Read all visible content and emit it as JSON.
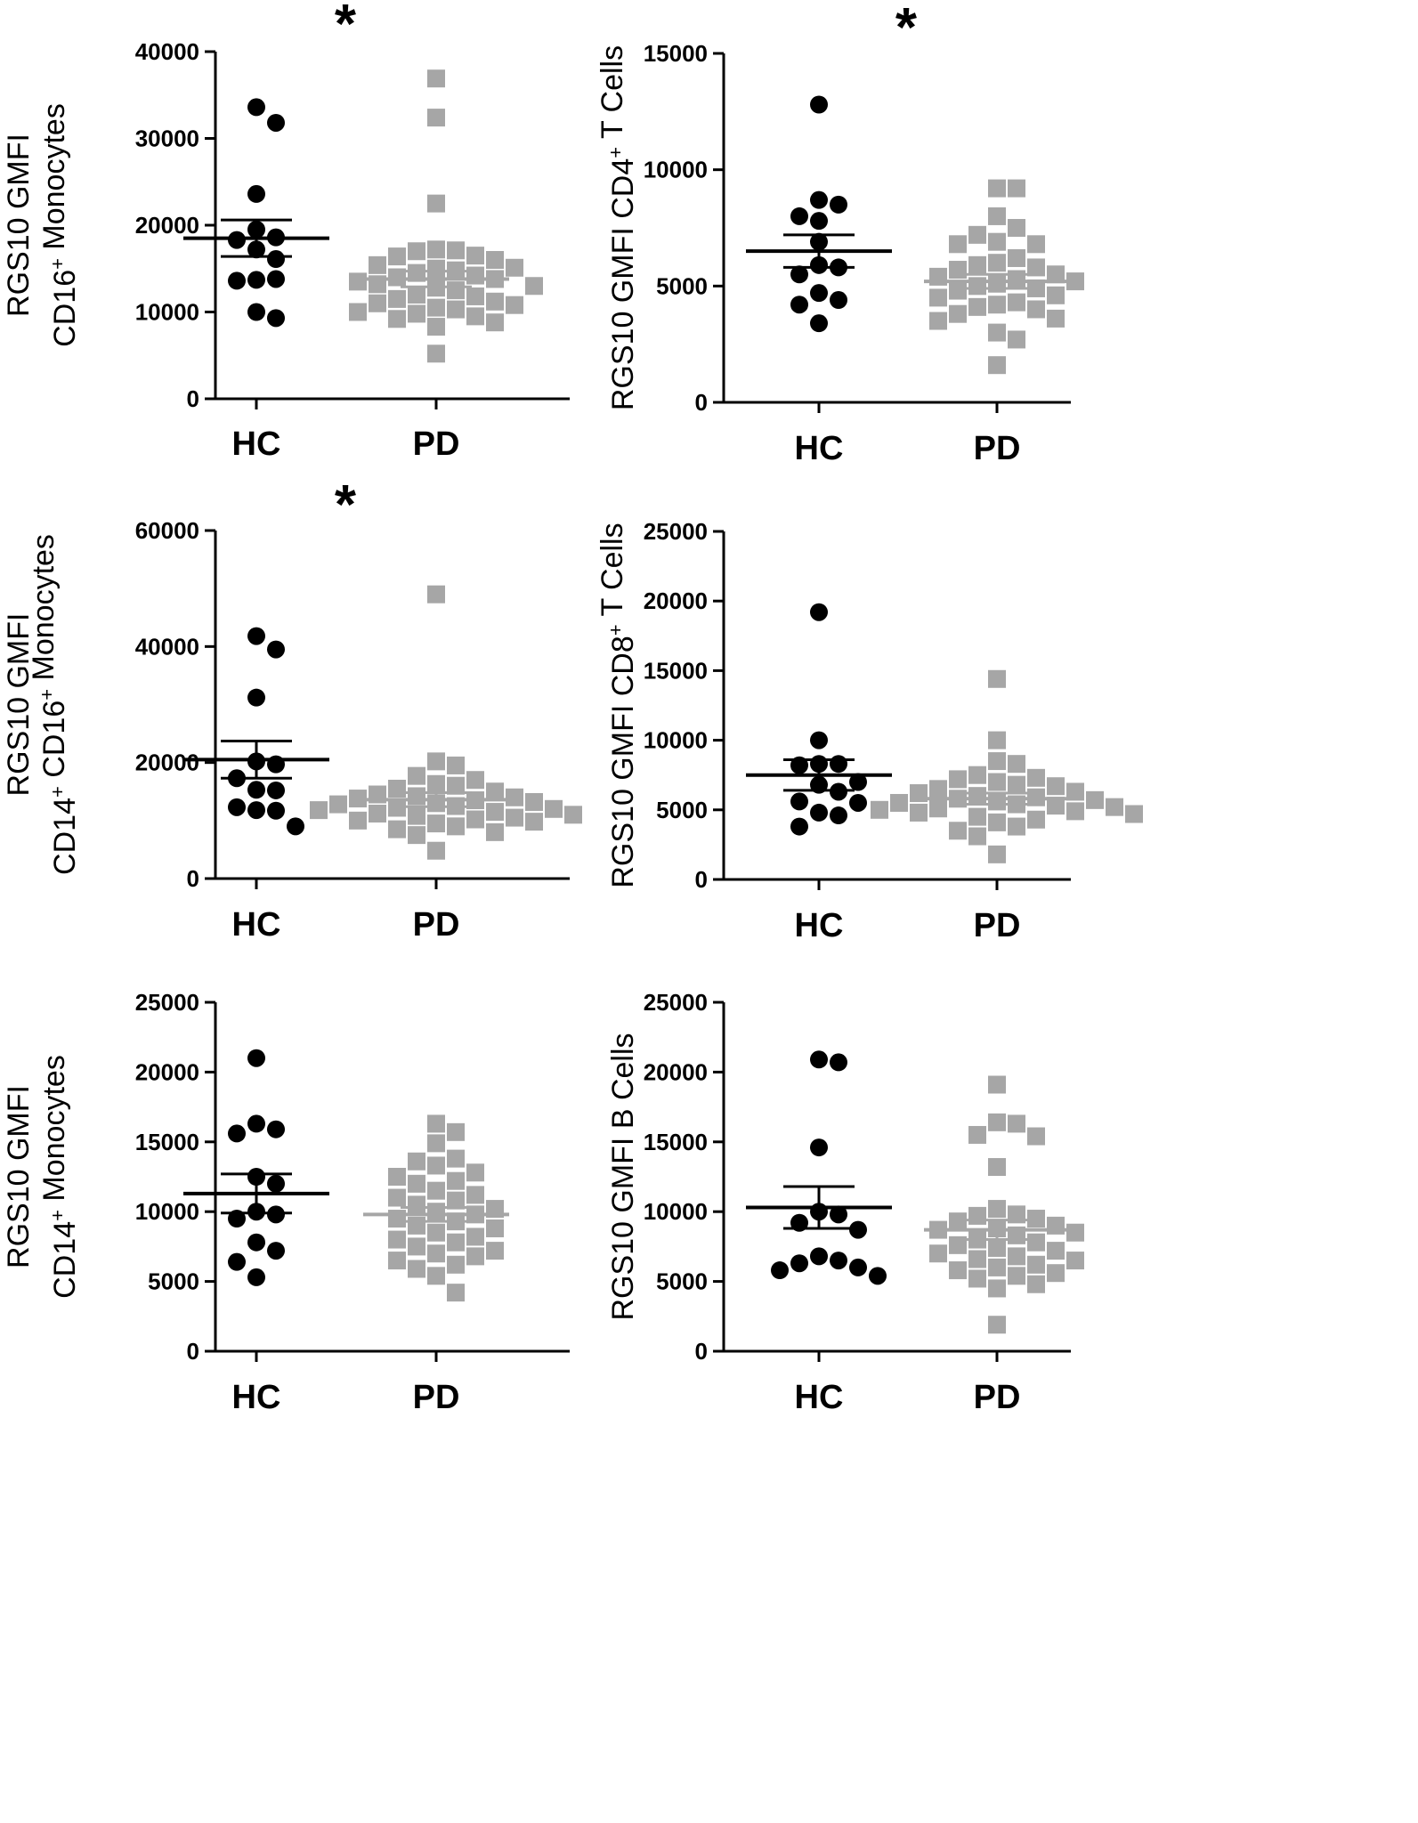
{
  "colors": {
    "hc": "#000000",
    "pd": "#a6a6a6",
    "axis": "#000000"
  },
  "chart_data": [
    {
      "type": "scatter",
      "panel": "top-left",
      "categories": [
        "HC",
        "PD"
      ],
      "ylabel_lines": [
        [
          {
            "t": "RGS10 GMFI"
          }
        ],
        [
          {
            "t": "CD16"
          },
          {
            "t": "+",
            "sup": true
          },
          {
            "t": " Monocytes"
          }
        ]
      ],
      "ylim": [
        0,
        40000
      ],
      "yticks": [
        0,
        10000,
        20000,
        30000,
        40000
      ],
      "ytick_labels": [
        "0",
        "10000",
        "20000",
        "30000",
        "40000"
      ],
      "significance": "*",
      "series": [
        {
          "name": "HC",
          "marker": "circle",
          "mean": 18500,
          "sem": 2100,
          "values": [
            33600,
            31800,
            23600,
            19500,
            18600,
            18300,
            17200,
            16100,
            13700,
            13800,
            13600,
            10000,
            9300
          ]
        },
        {
          "name": "PD",
          "marker": "square",
          "mean": 13800,
          "sem": 900,
          "values": [
            36900,
            32400,
            22500,
            17200,
            17100,
            17000,
            16500,
            16400,
            16000,
            15400,
            15100,
            15000,
            14800,
            14500,
            14200,
            14000,
            13800,
            13500,
            13200,
            13000,
            12800,
            12500,
            12000,
            11800,
            11500,
            11200,
            11000,
            10800,
            10500,
            10300,
            10000,
            9800,
            9500,
            9200,
            8800,
            8300,
            5200
          ]
        }
      ]
    },
    {
      "type": "scatter",
      "panel": "top-right",
      "categories": [
        "HC",
        "PD"
      ],
      "ylabel_lines": [
        [
          {
            "t": "RGS10 GMFI CD4"
          },
          {
            "t": "+",
            "sup": true
          },
          {
            "t": " T Cells"
          }
        ]
      ],
      "ylim": [
        0,
        15000
      ],
      "yticks": [
        0,
        5000,
        10000,
        15000
      ],
      "ytick_labels": [
        "0",
        "5000",
        "10000",
        "15000"
      ],
      "significance": "*",
      "series": [
        {
          "name": "HC",
          "marker": "circle",
          "mean": 6500,
          "sem": 700,
          "values": [
            12800,
            8700,
            8500,
            8000,
            7800,
            6900,
            5900,
            5800,
            5500,
            4700,
            4400,
            4200,
            3400
          ]
        },
        {
          "name": "PD",
          "marker": "square",
          "mean": 5200,
          "sem": 300,
          "values": [
            9200,
            9200,
            8000,
            7500,
            7200,
            6900,
            6800,
            6800,
            6200,
            6000,
            5900,
            5800,
            5700,
            5500,
            5400,
            5300,
            5200,
            5100,
            5000,
            4900,
            4800,
            4600,
            4500,
            4300,
            4200,
            4100,
            4000,
            3800,
            3600,
            3500,
            3000,
            2700,
            1600
          ]
        }
      ]
    },
    {
      "type": "scatter",
      "panel": "middle-left",
      "categories": [
        "HC",
        "PD"
      ],
      "ylabel_lines": [
        [
          {
            "t": "RGS10 GMFI"
          }
        ],
        [
          {
            "t": "CD14"
          },
          {
            "t": "+",
            "sup": true
          },
          {
            "t": " CD16"
          },
          {
            "t": "+",
            "sup": true
          },
          {
            "t": " Monocytes"
          }
        ]
      ],
      "ylim": [
        0,
        60000
      ],
      "yticks": [
        0,
        20000,
        40000,
        60000
      ],
      "ytick_labels": [
        "0",
        "20000",
        "40000",
        "60000"
      ],
      "significance": "*",
      "series": [
        {
          "name": "HC",
          "marker": "circle",
          "mean": 20500,
          "sem": 3200,
          "values": [
            41800,
            39500,
            31200,
            20200,
            19700,
            17300,
            15300,
            15200,
            12300,
            11800,
            11700,
            9000
          ]
        },
        {
          "name": "PD",
          "marker": "square",
          "mean": 13600,
          "sem": 1200,
          "values": [
            49000,
            20200,
            19500,
            17700,
            17000,
            16300,
            16000,
            15500,
            15000,
            14500,
            14200,
            14000,
            13800,
            13500,
            13200,
            13000,
            12800,
            12500,
            12200,
            12000,
            11800,
            11500,
            11200,
            11000,
            10800,
            10500,
            10200,
            10000,
            9800,
            9500,
            9000,
            8500,
            8000,
            7500,
            4800
          ]
        }
      ]
    },
    {
      "type": "scatter",
      "panel": "middle-right",
      "categories": [
        "HC",
        "PD"
      ],
      "ylabel_lines": [
        [
          {
            "t": "RGS10 GMFI CD8"
          },
          {
            "t": "+",
            "sup": true
          },
          {
            "t": " T Cells"
          }
        ]
      ],
      "ylim": [
        0,
        25000
      ],
      "yticks": [
        0,
        5000,
        10000,
        15000,
        20000,
        25000
      ],
      "ytick_labels": [
        "0",
        "5000",
        "10000",
        "15000",
        "20000",
        "25000"
      ],
      "significance": "",
      "series": [
        {
          "name": "HC",
          "marker": "circle",
          "mean": 7500,
          "sem": 1100,
          "values": [
            19200,
            10000,
            8300,
            8300,
            8200,
            7000,
            6800,
            6300,
            5600,
            5500,
            4800,
            4600,
            3800
          ]
        },
        {
          "name": "PD",
          "marker": "square",
          "mean": 5800,
          "sem": 400,
          "values": [
            14400,
            10000,
            8500,
            8300,
            7500,
            7300,
            7200,
            7000,
            6800,
            6700,
            6500,
            6300,
            6200,
            6000,
            5900,
            5800,
            5700,
            5600,
            5500,
            5400,
            5300,
            5200,
            5100,
            5000,
            4900,
            4800,
            4700,
            4500,
            4300,
            4100,
            3800,
            3500,
            3100,
            1800
          ]
        }
      ]
    },
    {
      "type": "scatter",
      "panel": "bottom-left",
      "categories": [
        "HC",
        "PD"
      ],
      "ylabel_lines": [
        [
          {
            "t": "RGS10 GMFI"
          }
        ],
        [
          {
            "t": "CD14"
          },
          {
            "t": "+",
            "sup": true
          },
          {
            "t": " Monocytes"
          }
        ]
      ],
      "ylim": [
        0,
        25000
      ],
      "yticks": [
        0,
        5000,
        10000,
        15000,
        20000,
        25000
      ],
      "ytick_labels": [
        "0",
        "5000",
        "10000",
        "15000",
        "20000",
        "25000"
      ],
      "significance": "",
      "series": [
        {
          "name": "HC",
          "marker": "circle",
          "mean": 11300,
          "sem": 1400,
          "values": [
            21000,
            16300,
            15900,
            15600,
            12500,
            12000,
            10000,
            9800,
            9500,
            7800,
            7200,
            6400,
            5300
          ]
        },
        {
          "name": "PD",
          "marker": "square",
          "mean": 9800,
          "sem": 500,
          "values": [
            16300,
            15700,
            14900,
            13800,
            13600,
            13300,
            12800,
            12500,
            12200,
            12000,
            11500,
            11200,
            11000,
            10800,
            10500,
            10200,
            10000,
            9800,
            9500,
            9300,
            9000,
            8800,
            8500,
            8200,
            8000,
            7800,
            7500,
            7200,
            7000,
            6800,
            6500,
            6200,
            5900,
            5400,
            4200
          ]
        }
      ]
    },
    {
      "type": "scatter",
      "panel": "bottom-right",
      "categories": [
        "HC",
        "PD"
      ],
      "ylabel_lines": [
        [
          {
            "t": "RGS10 GMFI B Cells"
          }
        ]
      ],
      "ylim": [
        0,
        25000
      ],
      "yticks": [
        0,
        5000,
        10000,
        15000,
        20000,
        25000
      ],
      "ytick_labels": [
        "0",
        "5000",
        "10000",
        "15000",
        "20000",
        "25000"
      ],
      "significance": "",
      "series": [
        {
          "name": "HC",
          "marker": "circle",
          "mean": 10300,
          "sem": 1500,
          "values": [
            20900,
            20700,
            14600,
            10000,
            9800,
            9200,
            8700,
            6800,
            6500,
            6300,
            6000,
            5800,
            5400
          ]
        },
        {
          "name": "PD",
          "marker": "square",
          "mean": 8700,
          "sem": 700,
          "values": [
            19100,
            16400,
            16300,
            15500,
            15400,
            13200,
            10200,
            9800,
            9700,
            9500,
            9300,
            9000,
            8800,
            8700,
            8500,
            8300,
            8000,
            7800,
            7600,
            7400,
            7200,
            7000,
            6800,
            6600,
            6500,
            6200,
            6000,
            5800,
            5600,
            5400,
            5200,
            4800,
            4500,
            1900
          ]
        }
      ]
    }
  ]
}
